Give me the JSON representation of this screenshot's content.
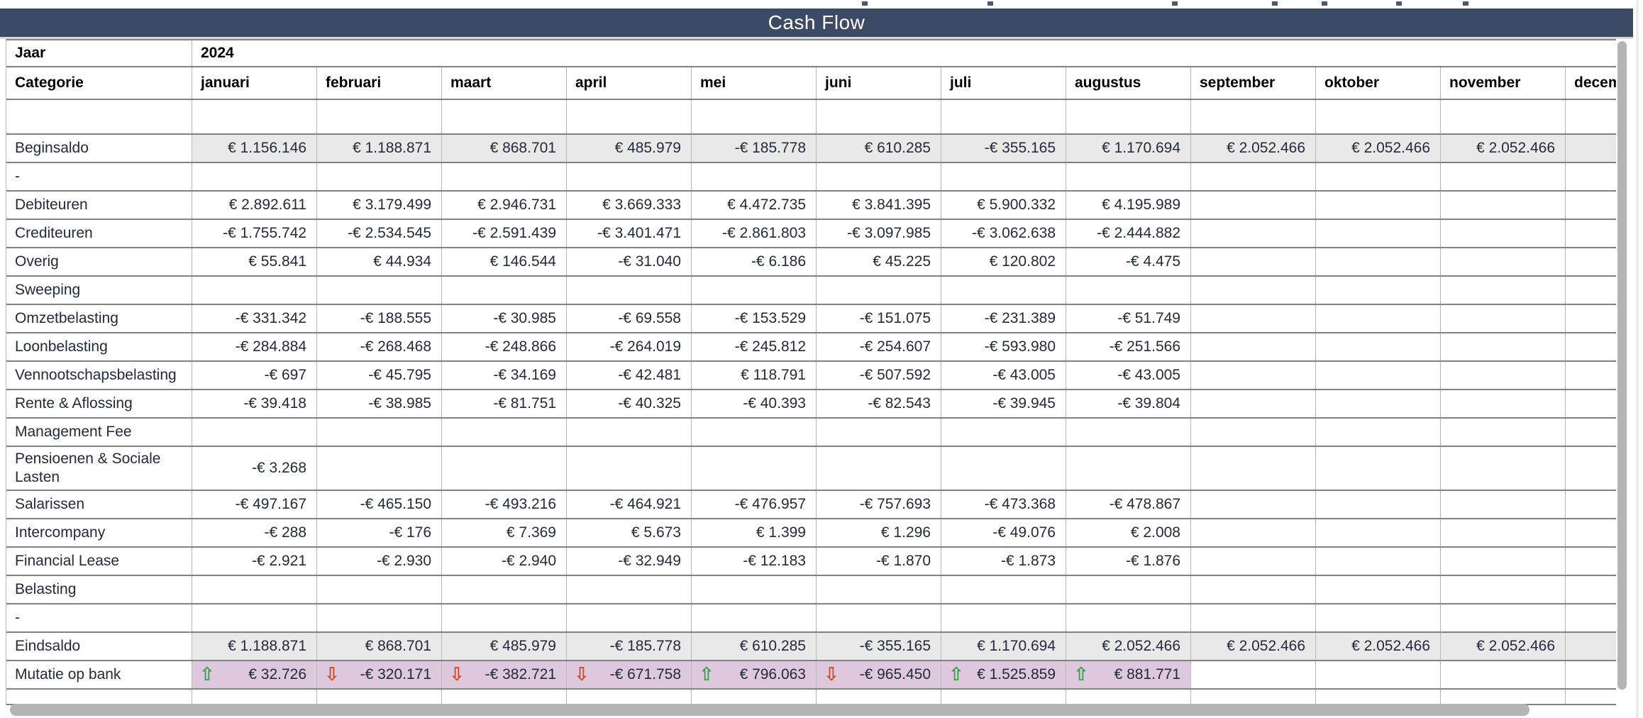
{
  "header": {
    "title": "Cash Flow"
  },
  "meta_row": {
    "label": "Jaar",
    "value": "2024"
  },
  "table": {
    "category_header": "Categorie",
    "months": [
      "januari",
      "februari",
      "maart",
      "april",
      "mei",
      "juni",
      "juli",
      "augustus",
      "september",
      "oktober",
      "november",
      "december"
    ],
    "rows": [
      {
        "label": "",
        "type": "spacer",
        "values": [
          "",
          "",
          "",
          "",
          "",
          "",
          "",
          "",
          "",
          "",
          "",
          ""
        ]
      },
      {
        "label": "Beginsaldo",
        "type": "saldo",
        "values": [
          "€ 1.156.146",
          "€ 1.188.871",
          "€ 868.701",
          "€ 485.979",
          "-€ 185.778",
          "€ 610.285",
          "-€ 355.165",
          "€ 1.170.694",
          "€ 2.052.466",
          "€ 2.052.466",
          "€ 2.052.466",
          "€"
        ]
      },
      {
        "label": "-",
        "type": "normal",
        "values": [
          "",
          "",
          "",
          "",
          "",
          "",
          "",
          "",
          "",
          "",
          "",
          ""
        ]
      },
      {
        "label": "Debiteuren",
        "type": "normal",
        "values": [
          "€ 2.892.611",
          "€ 3.179.499",
          "€ 2.946.731",
          "€ 3.669.333",
          "€ 4.472.735",
          "€ 3.841.395",
          "€ 5.900.332",
          "€ 4.195.989",
          "",
          "",
          "",
          ""
        ]
      },
      {
        "label": "Crediteuren",
        "type": "normal",
        "values": [
          "-€ 1.755.742",
          "-€ 2.534.545",
          "-€ 2.591.439",
          "-€ 3.401.471",
          "-€ 2.861.803",
          "-€ 3.097.985",
          "-€ 3.062.638",
          "-€ 2.444.882",
          "",
          "",
          "",
          ""
        ]
      },
      {
        "label": "Overig",
        "type": "normal",
        "values": [
          "€ 55.841",
          "€ 44.934",
          "€ 146.544",
          "-€ 31.040",
          "-€ 6.186",
          "€ 45.225",
          "€ 120.802",
          "-€ 4.475",
          "",
          "",
          "",
          ""
        ]
      },
      {
        "label": "Sweeping",
        "type": "normal",
        "values": [
          "",
          "",
          "",
          "",
          "",
          "",
          "",
          "",
          "",
          "",
          "",
          ""
        ]
      },
      {
        "label": "Omzetbelasting",
        "type": "normal",
        "values": [
          "-€ 331.342",
          "-€ 188.555",
          "-€ 30.985",
          "-€ 69.558",
          "-€ 153.529",
          "-€ 151.075",
          "-€ 231.389",
          "-€ 51.749",
          "",
          "",
          "",
          ""
        ]
      },
      {
        "label": "Loonbelasting",
        "type": "normal",
        "values": [
          "-€ 284.884",
          "-€ 268.468",
          "-€ 248.866",
          "-€ 264.019",
          "-€ 245.812",
          "-€ 254.607",
          "-€ 593.980",
          "-€ 251.566",
          "",
          "",
          "",
          ""
        ]
      },
      {
        "label": "Vennootschapsbelasting",
        "type": "normal",
        "values": [
          "-€ 697",
          "-€ 45.795",
          "-€ 34.169",
          "-€ 42.481",
          "€ 118.791",
          "-€ 507.592",
          "-€ 43.005",
          "-€ 43.005",
          "",
          "",
          "",
          ""
        ]
      },
      {
        "label": "Rente & Aflossing",
        "type": "normal",
        "values": [
          "-€ 39.418",
          "-€ 38.985",
          "-€ 81.751",
          "-€ 40.325",
          "-€ 40.393",
          "-€ 82.543",
          "-€ 39.945",
          "-€ 39.804",
          "",
          "",
          "",
          ""
        ]
      },
      {
        "label": "Management Fee",
        "type": "normal",
        "values": [
          "",
          "",
          "",
          "",
          "",
          "",
          "",
          "",
          "",
          "",
          "",
          ""
        ]
      },
      {
        "label": "Pensioenen & Sociale Lasten",
        "type": "tall",
        "values": [
          "-€ 3.268",
          "",
          "",
          "",
          "",
          "",
          "",
          "",
          "",
          "",
          "",
          ""
        ]
      },
      {
        "label": "Salarissen",
        "type": "normal",
        "values": [
          "-€ 497.167",
          "-€ 465.150",
          "-€ 493.216",
          "-€ 464.921",
          "-€ 476.957",
          "-€ 757.693",
          "-€ 473.368",
          "-€ 478.867",
          "",
          "",
          "",
          ""
        ]
      },
      {
        "label": "Intercompany",
        "type": "normal",
        "values": [
          "-€ 288",
          "-€ 176",
          "€ 7.369",
          "€ 5.673",
          "€ 1.399",
          "€ 1.296",
          "-€ 49.076",
          "€ 2.008",
          "",
          "",
          "",
          ""
        ]
      },
      {
        "label": "Financial Lease",
        "type": "normal",
        "values": [
          "-€ 2.921",
          "-€ 2.930",
          "-€ 2.940",
          "-€ 32.949",
          "-€ 12.183",
          "-€ 1.870",
          "-€ 1.873",
          "-€ 1.876",
          "",
          "",
          "",
          ""
        ]
      },
      {
        "label": "Belasting",
        "type": "normal",
        "values": [
          "",
          "",
          "",
          "",
          "",
          "",
          "",
          "",
          "",
          "",
          "",
          ""
        ]
      },
      {
        "label": "-",
        "type": "normal",
        "values": [
          "",
          "",
          "",
          "",
          "",
          "",
          "",
          "",
          "",
          "",
          "",
          ""
        ]
      },
      {
        "label": "Eindsaldo",
        "type": "saldo",
        "values": [
          "€ 1.188.871",
          "€ 868.701",
          "€ 485.979",
          "-€ 185.778",
          "€ 610.285",
          "-€ 355.165",
          "€ 1.170.694",
          "€ 2.052.466",
          "€ 2.052.466",
          "€ 2.052.466",
          "€ 2.052.466",
          "€"
        ]
      },
      {
        "label": "Mutatie op bank",
        "type": "mutatie",
        "values": [
          {
            "dir": "up",
            "val": "€ 32.726"
          },
          {
            "dir": "down",
            "val": "-€ 320.171"
          },
          {
            "dir": "down",
            "val": "-€ 382.721"
          },
          {
            "dir": "down",
            "val": "-€ 671.758"
          },
          {
            "dir": "up",
            "val": "€ 796.063"
          },
          {
            "dir": "down",
            "val": "-€ 965.450"
          },
          {
            "dir": "up",
            "val": "€ 1.525.859"
          },
          {
            "dir": "up",
            "val": "€ 881.771"
          },
          "",
          "",
          "",
          ""
        ]
      },
      {
        "label": "",
        "type": "bottom",
        "values": [
          "",
          "",
          "",
          "",
          "",
          "",
          "",
          "",
          "",
          "",
          "",
          ""
        ]
      }
    ]
  },
  "icons": {
    "up_arrow": "⇧",
    "down_arrow": "⇩"
  },
  "colors": {
    "title_bar": "#3d4a66",
    "saldo_row_bg": "#e9e9e9",
    "mutatie_row_bg": "#ddc8dd",
    "arrow_up": "#3a9e4d",
    "arrow_down": "#cf4a21"
  }
}
